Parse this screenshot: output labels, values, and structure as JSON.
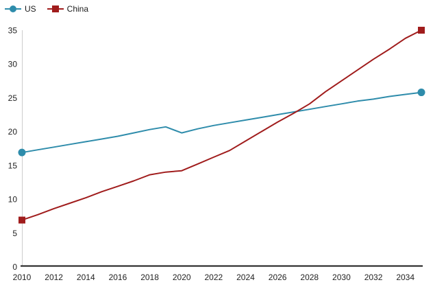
{
  "chart_data": {
    "type": "line",
    "title": "",
    "xlabel": "",
    "ylabel": "",
    "xlim": [
      2010,
      2035
    ],
    "ylim": [
      0,
      35
    ],
    "grid": false,
    "legend_position": "top-left",
    "background_color": "#ffffff",
    "axis_color": "#1a1a1a",
    "gridline_color": "#cccccc",
    "tick_text_color": "#222222",
    "x": [
      2010,
      2011,
      2012,
      2013,
      2014,
      2015,
      2016,
      2017,
      2018,
      2019,
      2020,
      2021,
      2022,
      2023,
      2024,
      2025,
      2026,
      2027,
      2028,
      2029,
      2030,
      2031,
      2032,
      2033,
      2034,
      2035
    ],
    "x_tick_labels": [
      "2010",
      "2012",
      "2014",
      "2016",
      "2018",
      "2020",
      "2022",
      "2024",
      "2026",
      "2028",
      "2030",
      "2032",
      "2034"
    ],
    "y_tick_labels": [
      "0",
      "5",
      "10",
      "15",
      "20",
      "25",
      "30",
      "35"
    ],
    "y_tick_values": [
      0,
      5,
      10,
      15,
      20,
      25,
      30,
      35
    ],
    "series": [
      {
        "name": "US",
        "color": "#2e8cab",
        "marker": "circle",
        "markers_at": "endpoints",
        "values": [
          16.9,
          17.3,
          17.7,
          18.1,
          18.5,
          18.9,
          19.3,
          19.8,
          20.3,
          20.7,
          19.8,
          20.4,
          20.9,
          21.3,
          21.7,
          22.1,
          22.5,
          22.9,
          23.3,
          23.7,
          24.1,
          24.5,
          24.8,
          25.2,
          25.5,
          25.8
        ]
      },
      {
        "name": "China",
        "color": "#a01c1c",
        "marker": "square",
        "markers_at": "endpoints",
        "values": [
          6.9,
          7.7,
          8.6,
          9.4,
          10.2,
          11.1,
          11.9,
          12.7,
          13.6,
          14.0,
          14.2,
          15.2,
          16.2,
          17.2,
          18.6,
          20.0,
          21.4,
          22.7,
          24.1,
          25.9,
          27.5,
          29.1,
          30.7,
          32.2,
          33.8,
          35.0
        ]
      }
    ]
  }
}
